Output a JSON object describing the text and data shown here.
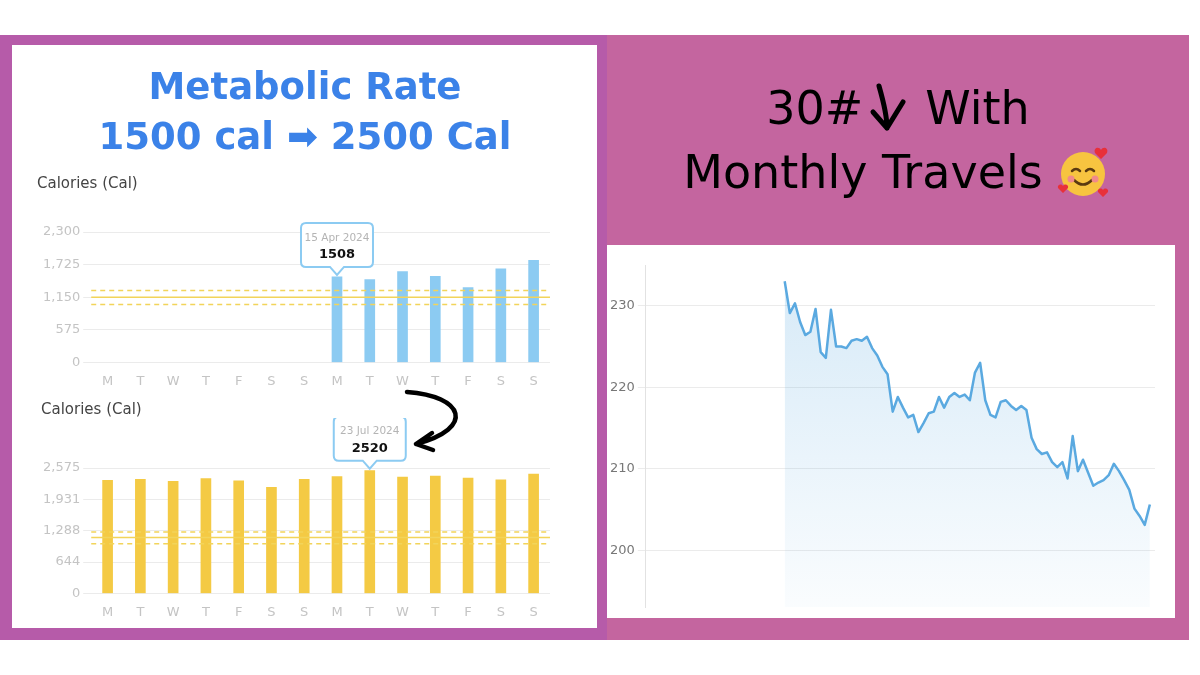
{
  "chart_data": [
    {
      "type": "bar",
      "title": "Metabolic Rate\n1500 cal ➡ 2500 Cal",
      "ylabel": "Calories (Cal)",
      "categories": [
        "M",
        "T",
        "W",
        "T",
        "F",
        "S",
        "S",
        "M",
        "T",
        "W",
        "T",
        "F",
        "S",
        "S"
      ],
      "values": [
        null,
        null,
        null,
        null,
        null,
        null,
        null,
        1508,
        1460,
        1600,
        1520,
        1320,
        1650,
        1800
      ],
      "color": "#8ccbf2",
      "value_labels": [
        null,
        null,
        null,
        null,
        null,
        null,
        null,
        "1508",
        null,
        null,
        null,
        null,
        null,
        null
      ],
      "annotations": [
        "15 Apr 2024"
      ],
      "ylim": [
        0,
        2300
      ],
      "yticks": [
        0,
        {
          "value": 575,
          "label": "575"
        },
        {
          "value": 1150,
          "label": "1,150"
        },
        {
          "value": 1725,
          "label": "1,725"
        },
        {
          "value": 2300,
          "label": "2,300"
        }
      ],
      "ref_lines": [
        {
          "axis": "y",
          "value": 1150,
          "color": "#f2d45a",
          "line_style": "solid"
        },
        {
          "axis": "y",
          "value": 1270,
          "color": "#f2d45a",
          "line_style": "dashed"
        },
        {
          "axis": "y",
          "value": 1020,
          "color": "#f2d45a",
          "line_style": "dashed"
        }
      ],
      "grid": "y"
    },
    {
      "type": "bar",
      "ylabel": "Calories (Cal)",
      "categories": [
        "M",
        "T",
        "W",
        "T",
        "F",
        "S",
        "S",
        "M",
        "T",
        "W",
        "T",
        "F",
        "S",
        "S"
      ],
      "values": [
        2320,
        2340,
        2300,
        2360,
        2310,
        2180,
        2340,
        2400,
        2520,
        2390,
        2410,
        2370,
        2330,
        2450
      ],
      "color": "#f4ca44",
      "value_labels": [
        null,
        null,
        null,
        null,
        null,
        null,
        null,
        null,
        "2520",
        null,
        null,
        null,
        null,
        null
      ],
      "annotations": [
        "23 Jul 2024"
      ],
      "ylim": [
        0,
        2575
      ],
      "yticks": [
        0,
        {
          "value": 644,
          "label": "644"
        },
        {
          "value": 1288,
          "label": "1,288"
        },
        {
          "value": 1931,
          "label": "1,931"
        },
        {
          "value": 2575,
          "label": "2,575"
        }
      ],
      "ref_lines": [
        {
          "axis": "y",
          "value": 1150,
          "color": "#f2d45a",
          "line_style": "solid"
        },
        {
          "axis": "y",
          "value": 1260,
          "color": "#f2d45a",
          "line_style": "dashed"
        },
        {
          "axis": "y",
          "value": 1020,
          "color": "#f2d45a",
          "line_style": "dashed"
        }
      ],
      "grid": "y"
    },
    {
      "type": "area",
      "title": "30# With\nMonthly Travels",
      "categories": [
        null,
        null,
        null,
        null,
        null,
        null,
        null,
        null,
        null,
        null,
        null,
        null,
        null,
        null,
        null,
        null,
        null,
        null,
        null,
        null,
        null,
        null,
        null,
        null,
        null,
        null,
        null,
        null,
        null,
        null,
        null,
        null,
        null,
        null,
        null,
        null,
        null,
        null,
        null,
        null,
        null,
        null,
        null,
        null,
        null,
        null,
        null,
        null,
        null,
        null,
        null,
        null,
        null,
        null,
        null,
        null,
        null,
        null,
        null,
        null,
        null,
        null,
        null,
        null,
        null,
        null,
        null,
        null,
        null,
        null,
        null,
        null,
        null,
        null,
        null,
        null,
        null,
        null,
        null,
        null,
        null,
        null,
        null,
        null,
        null,
        null,
        null,
        null,
        null,
        null,
        null,
        null,
        null,
        null,
        null,
        null,
        null,
        null,
        null,
        null
      ],
      "values": [
        null,
        null,
        null,
        null,
        null,
        null,
        null,
        null,
        null,
        null,
        null,
        null,
        null,
        null,
        null,
        null,
        null,
        null,
        null,
        null,
        null,
        null,
        null,
        null,
        null,
        null,
        null,
        233,
        229.1,
        230.3,
        228,
        226.4,
        226.8,
        229.6,
        224.3,
        223.6,
        229.5,
        225,
        225,
        224.8,
        225.7,
        225.9,
        225.7,
        226.2,
        224.8,
        223.9,
        222.5,
        221.6,
        217,
        218.8,
        217.5,
        216.3,
        216.6,
        214.5,
        215.6,
        216.8,
        217,
        218.8,
        217.5,
        218.8,
        219.3,
        218.8,
        219.1,
        218.4,
        221.8,
        223,
        218.4,
        216.6,
        216.3,
        218.2,
        218.4,
        217.7,
        217.2,
        217.7,
        217.2,
        213.8,
        212.4,
        211.8,
        212,
        210.8,
        210.2,
        210.8,
        208.8,
        214,
        209.7,
        211.1,
        209.5,
        207.9,
        208.3,
        208.6,
        209.2,
        210.6,
        209.7,
        208.6,
        207.4,
        205.1,
        204.2,
        203.1,
        205.6,
        null
      ],
      "color": "#5aa9e0",
      "ylim": [
        193,
        235
      ],
      "yticks": [
        200,
        210,
        220,
        230
      ],
      "grid": "y",
      "tick_labels": "y"
    }
  ]
}
